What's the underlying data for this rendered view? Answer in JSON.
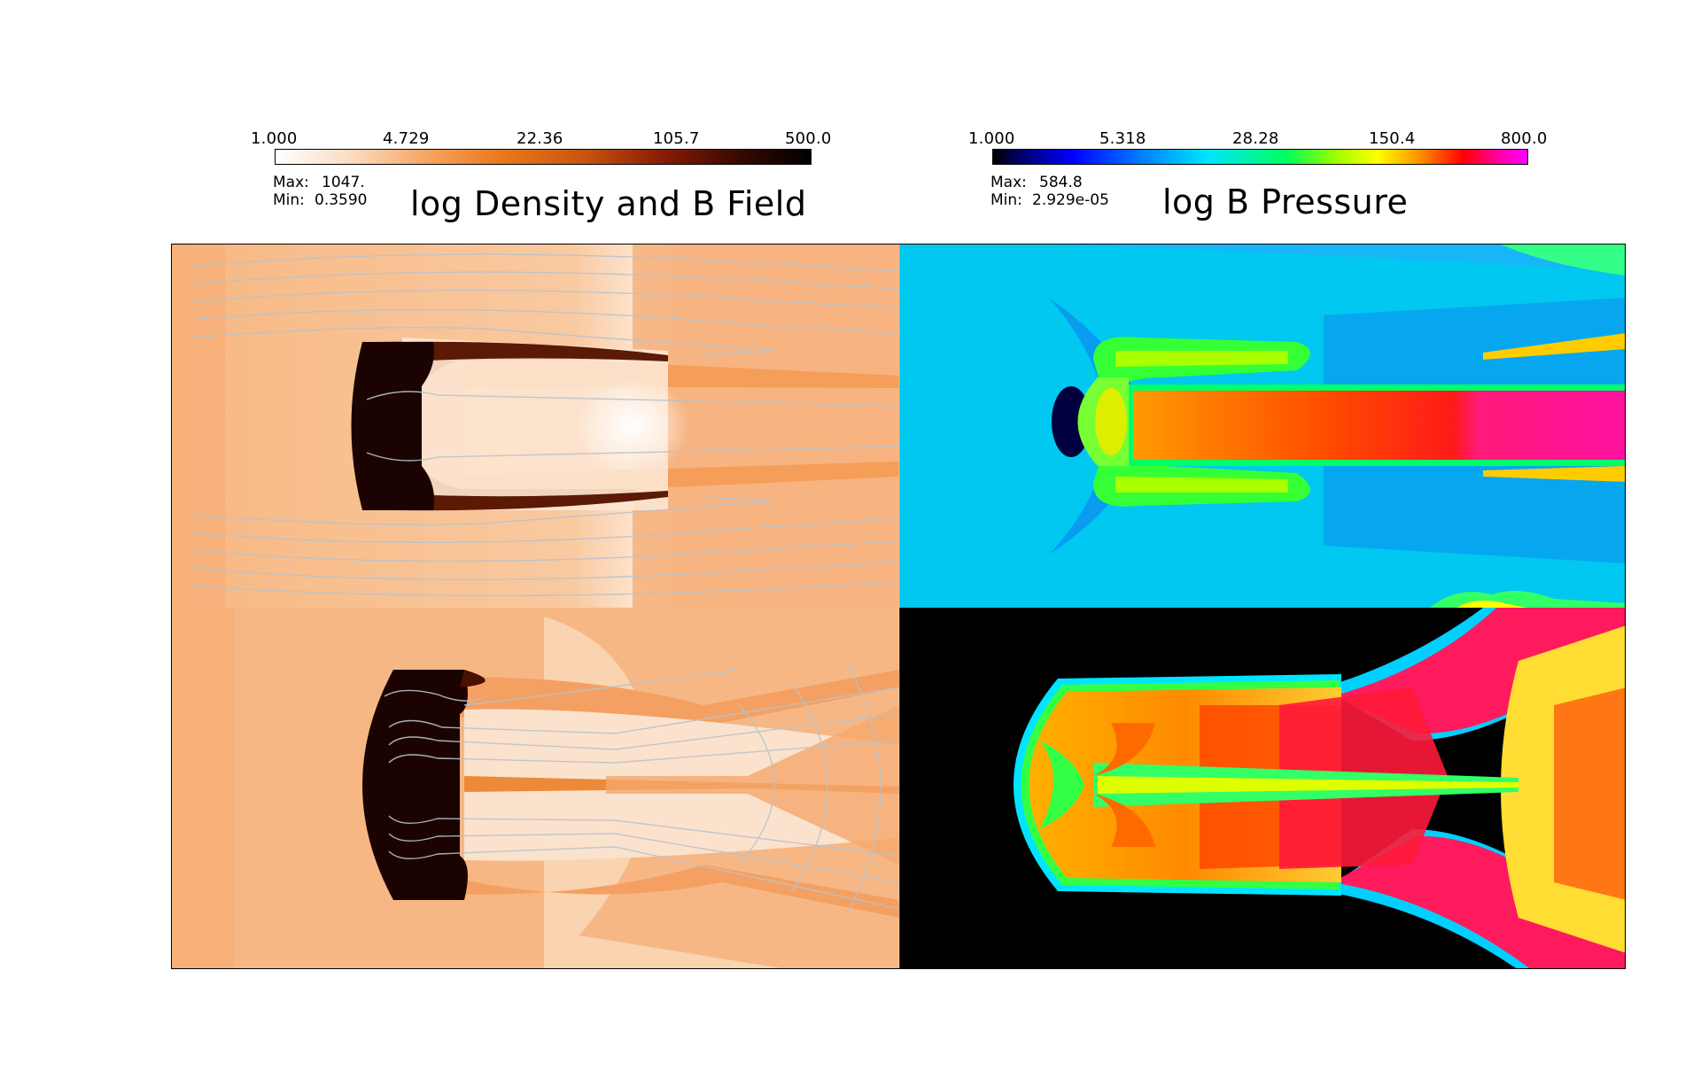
{
  "left_panel": {
    "title": "log Density and B Field",
    "colorbar": {
      "ticks": [
        "1.000",
        "4.729",
        "22.36",
        "105.7",
        "500.0"
      ],
      "colors": [
        "#ffffff",
        "#f6a563",
        "#e87a1c",
        "#8a1d05",
        "#000000"
      ]
    },
    "max_label": "Max:",
    "max_value": "1047.",
    "min_label": "Min:",
    "min_value": "0.3590"
  },
  "right_panel": {
    "title": "log B Pressure",
    "colorbar": {
      "ticks": [
        "1.000",
        "5.318",
        "28.28",
        "150.4",
        "800.0"
      ],
      "colors": [
        "#000000",
        "#0000ff",
        "#00e5ff",
        "#00ff5a",
        "#ffff00",
        "#ff0000",
        "#ff00ff"
      ]
    },
    "max_label": "Max:",
    "max_value": "584.8",
    "min_label": "Min:",
    "min_value": "2.929e-05"
  }
}
